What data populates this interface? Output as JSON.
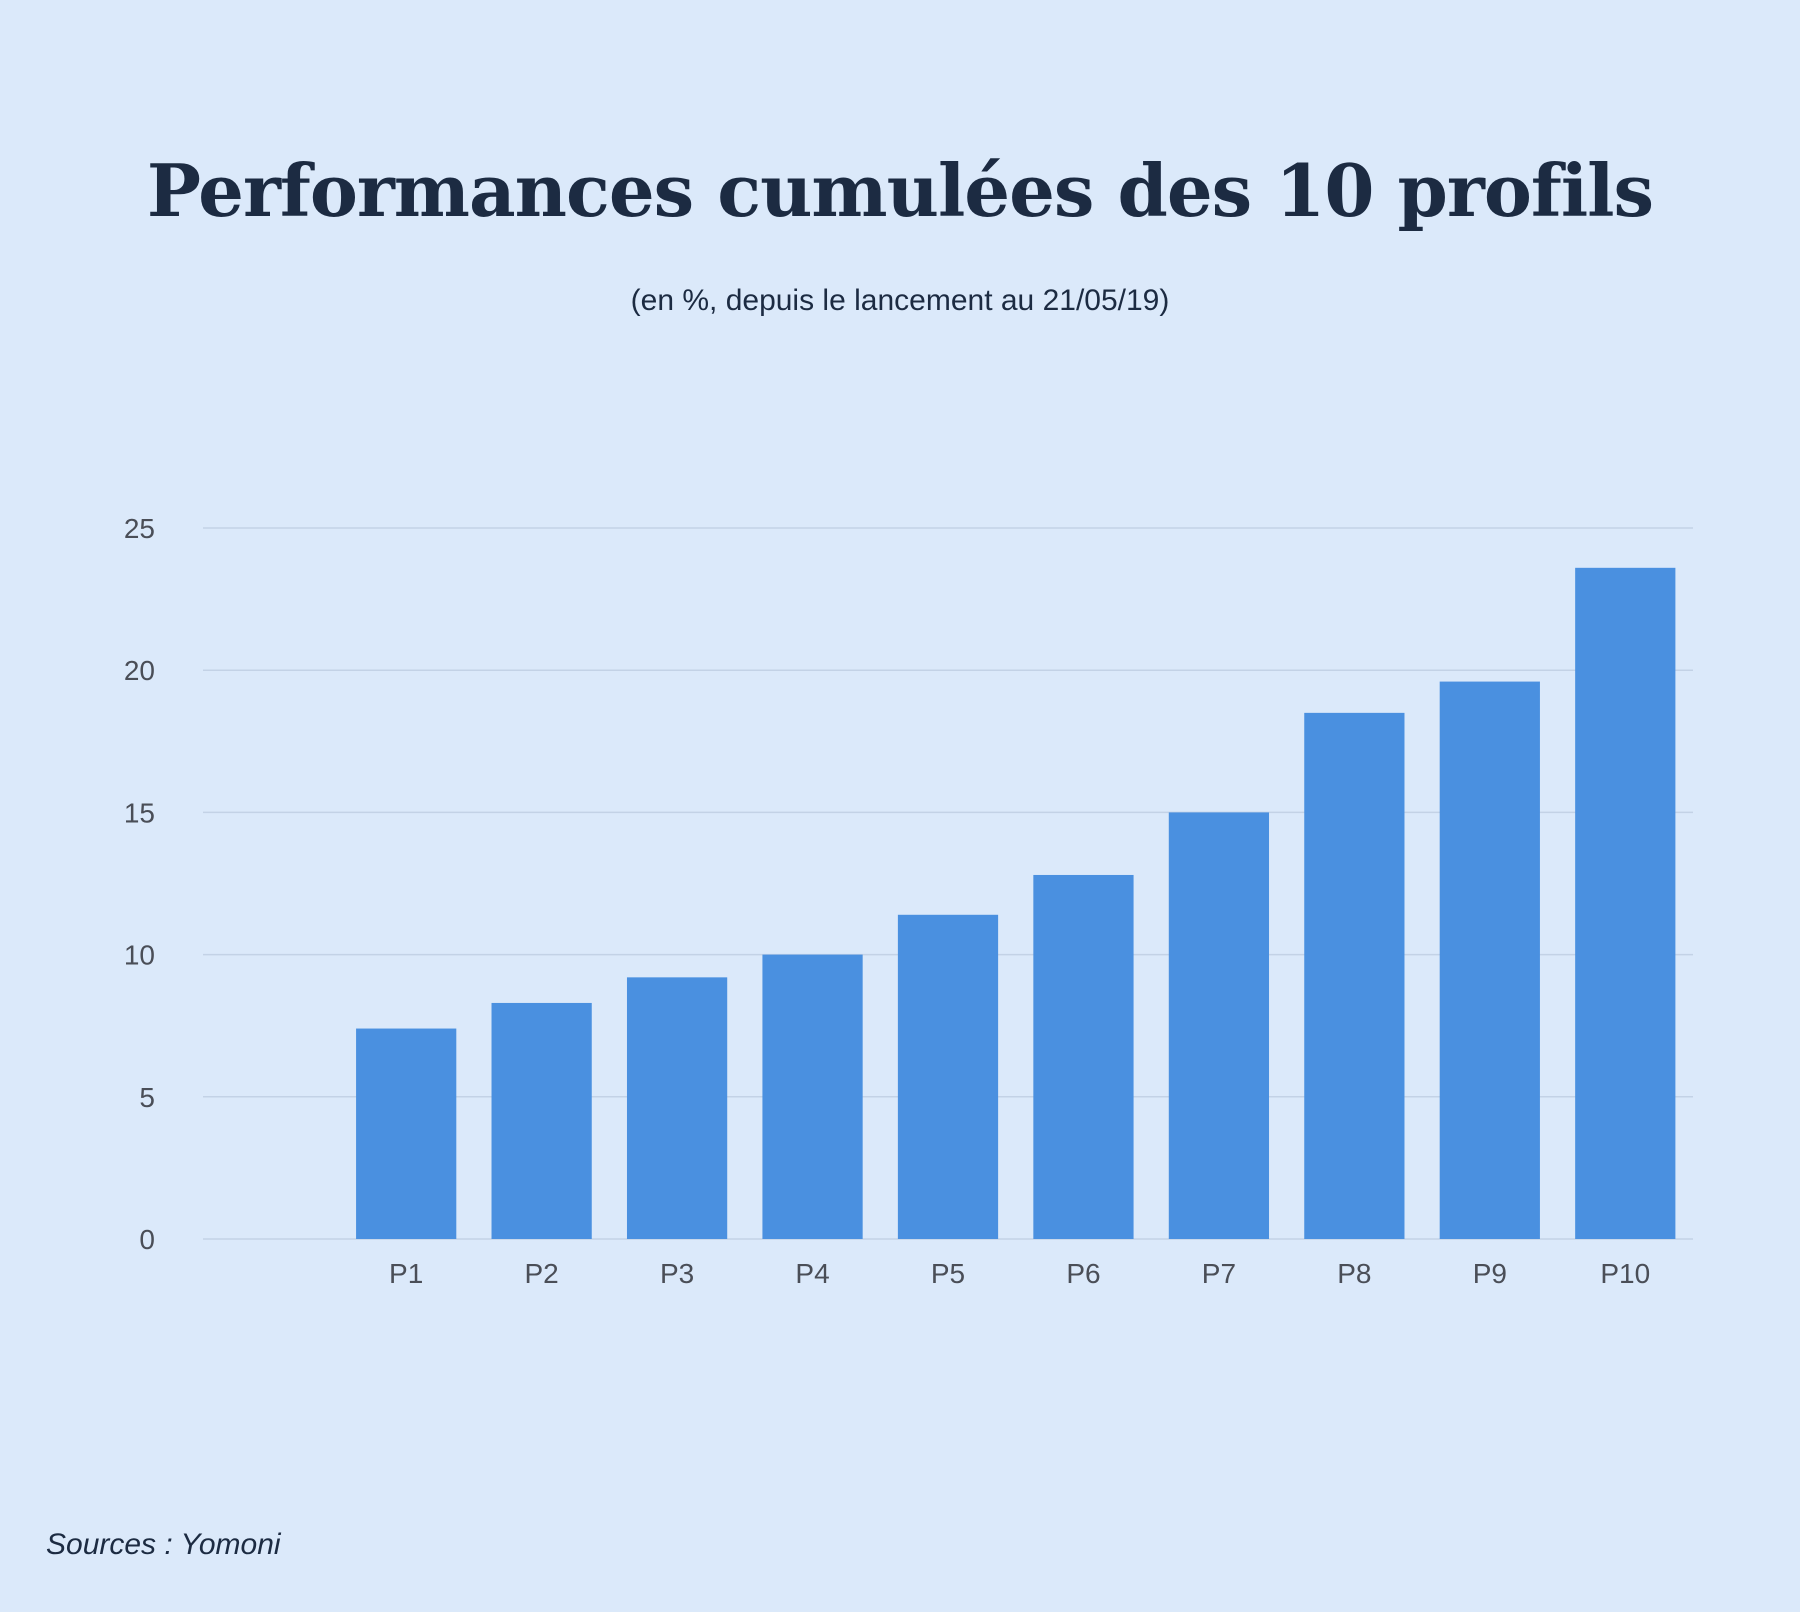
{
  "colors": {
    "background": "#dbe9fa",
    "bar": "#4a90e0",
    "gridline": "#c3d2e6",
    "title": "#1c2b42",
    "tick_text": "#4a4e57"
  },
  "source": "Sources : Yomoni",
  "chart_data": {
    "type": "bar",
    "title": "Performances cumulées des 10 profils",
    "subtitle": "(en %, depuis le lancement au 21/05/19)",
    "xlabel": "",
    "ylabel": "",
    "categories": [
      "",
      "P1",
      "P2",
      "P3",
      "P4",
      "P5",
      "P6",
      "P7",
      "P8",
      "P9",
      "P10"
    ],
    "values": [
      null,
      7.4,
      8.3,
      9.2,
      10.0,
      11.4,
      12.8,
      15.0,
      18.5,
      19.6,
      23.6
    ],
    "ylim": [
      0,
      25
    ],
    "yticks": [
      "0",
      "5",
      "10",
      "15",
      "20",
      "25"
    ],
    "grid": true,
    "legend": "none"
  }
}
